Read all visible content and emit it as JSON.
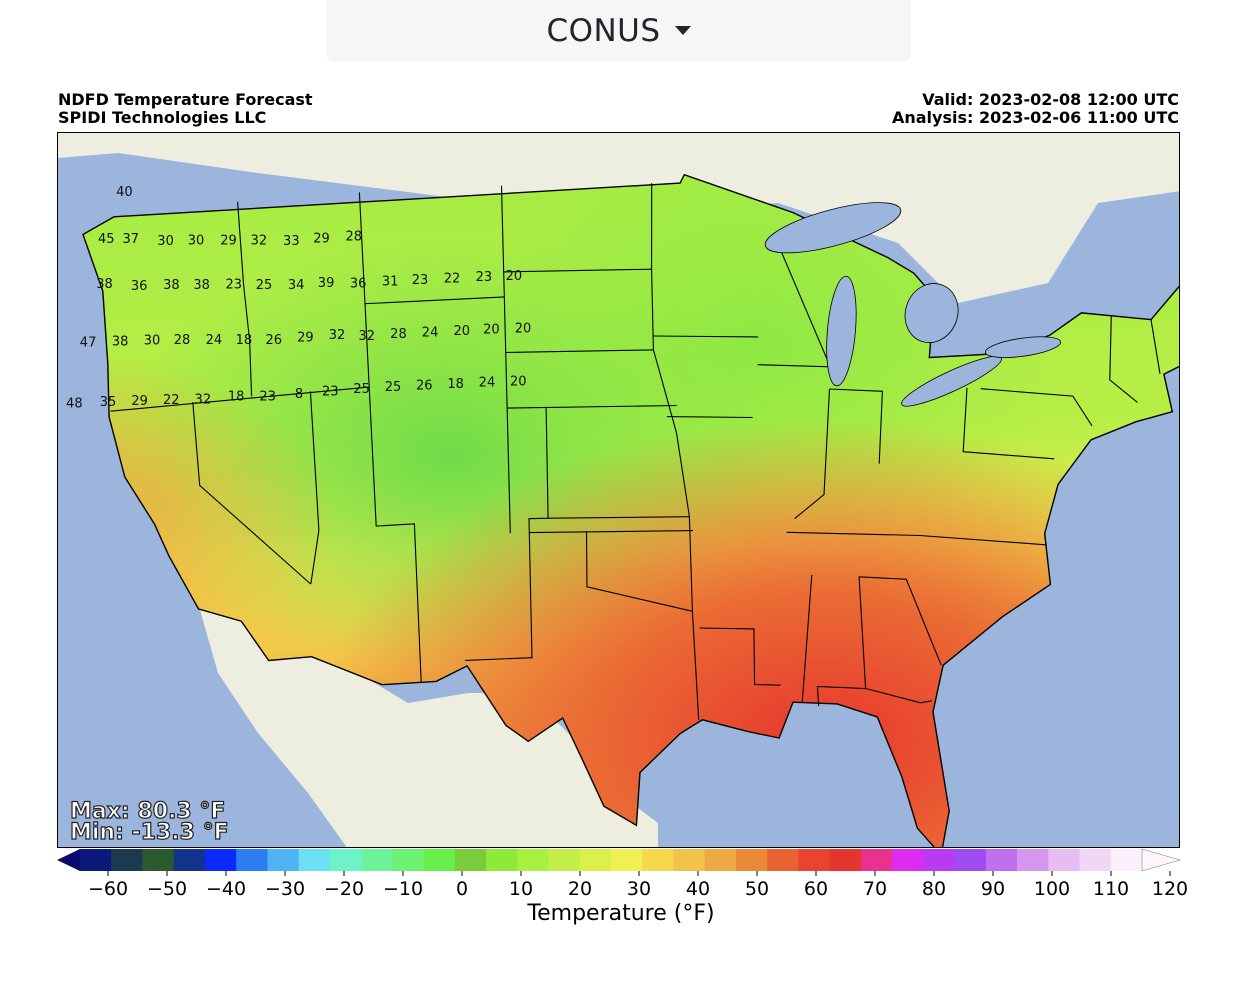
{
  "region_selector": {
    "label": "CONUS",
    "icon": "caret-down-icon"
  },
  "header": {
    "title_line1": "NDFD Temperature Forecast",
    "title_line2": "SPIDI Technologies LLC",
    "valid_line": "Valid: 2023-02-08 12:00 UTC",
    "analysis_line": "Analysis: 2023-02-06 11:00 UTC"
  },
  "stats": {
    "max_text": "Max: 80.3 °F",
    "min_text": "Min: -13.3 °F"
  },
  "colorbar": {
    "title": "Temperature (°F)",
    "ticks": [
      "−60",
      "−50",
      "−40",
      "−30",
      "−20",
      "−10",
      "0",
      "10",
      "20",
      "30",
      "40",
      "50",
      "60",
      "70",
      "80",
      "90",
      "100",
      "110",
      "120"
    ],
    "tick_values": [
      -60,
      -50,
      -40,
      -30,
      -20,
      -10,
      0,
      10,
      20,
      30,
      40,
      50,
      60,
      70,
      80,
      90,
      100,
      110,
      120
    ],
    "colors": [
      "#0b1a7a",
      "#1c3a4f",
      "#2a5a2e",
      "#12338c",
      "#0a2aff",
      "#2c7cf2",
      "#4eb2f3",
      "#6be0f2",
      "#6ef2c8",
      "#6ef29a",
      "#6ef272",
      "#66ee4a",
      "#7acc3c",
      "#8eea3a",
      "#a8f040",
      "#c2f048",
      "#dcf04c",
      "#f0f052",
      "#f6d84a",
      "#f3c24a",
      "#eeaa42",
      "#ea8a38",
      "#e86232",
      "#e84430",
      "#e6352e",
      "#e8328e",
      "#dc2cf2",
      "#b83af2",
      "#9e4cf2",
      "#c070ee",
      "#d696ee",
      "#e6bcf2",
      "#f2d6f6",
      "#fbf0fb"
    ],
    "range_min": -60,
    "range_max": 120,
    "extend_low_color": "#090970",
    "extend_high_color": "#fdf6fd"
  },
  "map": {
    "ocean_color": "#9bb5dc",
    "land_outside_color": "#eeeee0",
    "lake_color": "#9bb5dc",
    "labels": [
      {
        "text": "40",
        "x": -122.5,
        "y": 49.6
      },
      {
        "text": "45",
        "x": -123.6,
        "y": 48.0
      },
      {
        "text": "37",
        "x": -122.4,
        "y": 47.9
      },
      {
        "text": "30",
        "x": -120.7,
        "y": 47.7
      },
      {
        "text": "30",
        "x": -119.2,
        "y": 47.6
      },
      {
        "text": "29",
        "x": -117.6,
        "y": 47.5
      },
      {
        "text": "32",
        "x": -116.1,
        "y": 47.4
      },
      {
        "text": "33",
        "x": -114.5,
        "y": 47.3
      },
      {
        "text": "29",
        "x": -113.0,
        "y": 47.3
      },
      {
        "text": "28",
        "x": -111.4,
        "y": 47.3
      },
      {
        "text": "38",
        "x": -123.9,
        "y": 46.4
      },
      {
        "text": "36",
        "x": -122.2,
        "y": 46.2
      },
      {
        "text": "38",
        "x": -120.6,
        "y": 46.1
      },
      {
        "text": "38",
        "x": -119.1,
        "y": 46.0
      },
      {
        "text": "23",
        "x": -117.5,
        "y": 45.9
      },
      {
        "text": "25",
        "x": -116.0,
        "y": 45.8
      },
      {
        "text": "34",
        "x": -114.4,
        "y": 45.7
      },
      {
        "text": "39",
        "x": -112.9,
        "y": 45.7
      },
      {
        "text": "36",
        "x": -111.3,
        "y": 45.6
      },
      {
        "text": "31",
        "x": -109.7,
        "y": 45.6
      },
      {
        "text": "23",
        "x": -108.2,
        "y": 45.6
      },
      {
        "text": "22",
        "x": -106.6,
        "y": 45.6
      },
      {
        "text": "23",
        "x": -105.0,
        "y": 45.6
      },
      {
        "text": "20",
        "x": -103.5,
        "y": 45.6
      },
      {
        "text": "47",
        "x": -125.0,
        "y": 44.4
      },
      {
        "text": "38",
        "x": -123.4,
        "y": 44.3
      },
      {
        "text": "30",
        "x": -121.8,
        "y": 44.2
      },
      {
        "text": "28",
        "x": -120.3,
        "y": 44.1
      },
      {
        "text": "24",
        "x": -118.7,
        "y": 44.0
      },
      {
        "text": "18",
        "x": -117.2,
        "y": 43.9
      },
      {
        "text": "26",
        "x": -115.7,
        "y": 43.8
      },
      {
        "text": "29",
        "x": -114.1,
        "y": 43.8
      },
      {
        "text": "32",
        "x": -112.5,
        "y": 43.8
      },
      {
        "text": "32",
        "x": -111.0,
        "y": 43.7
      },
      {
        "text": "28",
        "x": -109.4,
        "y": 43.7
      },
      {
        "text": "24",
        "x": -107.8,
        "y": 43.7
      },
      {
        "text": "20",
        "x": -106.2,
        "y": 43.7
      },
      {
        "text": "20",
        "x": -104.7,
        "y": 43.7
      },
      {
        "text": "20",
        "x": -103.1,
        "y": 43.7
      },
      {
        "text": "48",
        "x": -126.0,
        "y": 42.3
      },
      {
        "text": "35",
        "x": -124.3,
        "y": 42.2
      },
      {
        "text": "29",
        "x": -122.7,
        "y": 42.1
      },
      {
        "text": "22",
        "x": -121.1,
        "y": 42.0
      },
      {
        "text": "32",
        "x": -119.5,
        "y": 41.9
      },
      {
        "text": "18",
        "x": -117.8,
        "y": 41.9
      },
      {
        "text": "23",
        "x": -116.2,
        "y": 41.8
      },
      {
        "text": "8",
        "x": -114.6,
        "y": 41.8
      },
      {
        "text": "23",
        "x": -113.0,
        "y": 41.8
      },
      {
        "text": "25",
        "x": -111.4,
        "y": 41.8
      },
      {
        "text": "25",
        "x": -109.8,
        "y": 41.8
      },
      {
        "text": "26",
        "x": -108.2,
        "y": 41.8
      },
      {
        "text": "18",
        "x": -106.6,
        "y": 41.8
      },
      {
        "text": "24",
        "x": -105.0,
        "y": 41.8
      },
      {
        "text": "20",
        "x": -103.4,
        "y": 41.8
      }
    ]
  }
}
